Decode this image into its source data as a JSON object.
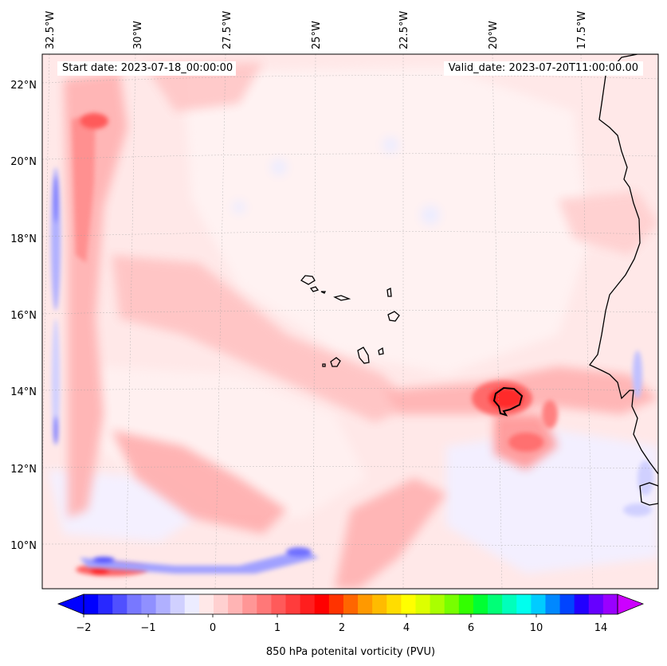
{
  "map": {
    "lon_labels": [
      "32.5°W",
      "30°W",
      "27.5°W",
      "25°W",
      "22.5°W",
      "20°W",
      "17.5°W"
    ],
    "lat_labels": [
      "22°N",
      "20°N",
      "18°N",
      "16°N",
      "14°N",
      "12°N",
      "10°N"
    ],
    "start_label": "Start date: 2023-07-18_00:00:00",
    "valid_label": "Valid_date: 2023-07-20T11:00:00.00"
  },
  "colorbar": {
    "ticks": [
      "−2",
      "−1",
      "0",
      "1",
      "2",
      "4",
      "6",
      "10",
      "14"
    ],
    "label": "850 hPa potenital vorticity (PVU)",
    "colors": [
      "#0000ff",
      "#2828ff",
      "#5050ff",
      "#7878ff",
      "#9090ff",
      "#b0b0ff",
      "#d0d0ff",
      "#ececff",
      "#ffe8e8",
      "#ffd0d0",
      "#ffb4b4",
      "#ff9696",
      "#ff7878",
      "#ff5a5a",
      "#ff3c3c",
      "#ff1e1e",
      "#ff0000",
      "#ff3300",
      "#ff6600",
      "#ff9900",
      "#ffbb00",
      "#ffdd00",
      "#ffff00",
      "#ddff00",
      "#aaff00",
      "#77ff00",
      "#33ff00",
      "#00ff33",
      "#00ff77",
      "#00ffbb",
      "#00ffee",
      "#00ccff",
      "#0088ff",
      "#0044ff",
      "#2200ff",
      "#6600ff",
      "#9900ff"
    ],
    "under_color": "#0000ff",
    "over_color": "#cc00ff"
  }
}
